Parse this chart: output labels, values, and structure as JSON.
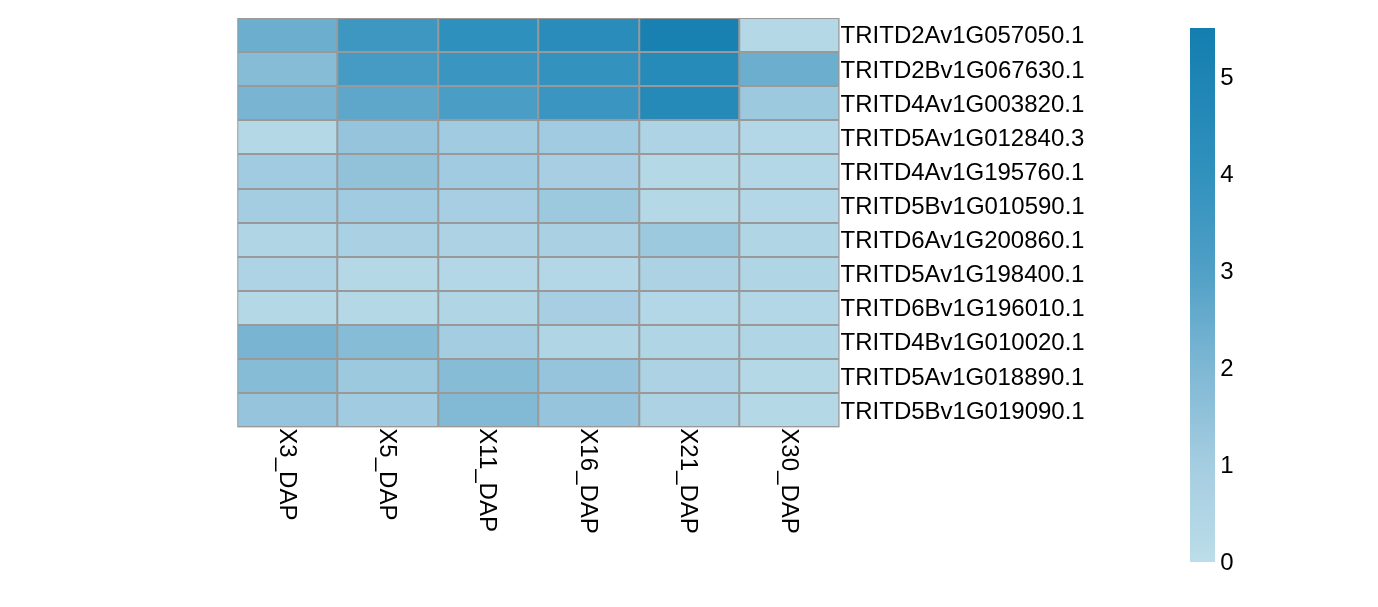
{
  "chart_data": {
    "type": "heatmap",
    "categories": [
      "X3_DAP",
      "X5_DAP",
      "X11_DAP",
      "X16_DAP",
      "X21_DAP",
      "X30_DAP"
    ],
    "y_categories": [
      "TRITD2Av1G057050.1",
      "TRITD2Bv1G067630.1",
      "TRITD4Av1G003820.1",
      "TRITD5Av1G012840.3",
      "TRITD4Av1G195760.1",
      "TRITD5Bv1G010590.1",
      "TRITD6Av1G200860.1",
      "TRITD5Av1G198400.1",
      "TRITD6Bv1G196010.1",
      "TRITD4Bv1G010020.1",
      "TRITD5Av1G018890.1",
      "TRITD5Bv1G019090.1"
    ],
    "cells": [
      [
        2.4,
        3.6,
        4.1,
        4.4,
        5.3,
        0.3
      ],
      [
        1.8,
        3.3,
        3.7,
        3.9,
        4.5,
        2.4
      ],
      [
        2.1,
        2.7,
        3.2,
        3.7,
        4.6,
        1.2
      ],
      [
        0.3,
        1.4,
        1.1,
        1.1,
        0.6,
        0.4
      ],
      [
        1.1,
        1.5,
        1.1,
        0.9,
        0.3,
        0.4
      ],
      [
        1.0,
        1.1,
        0.9,
        1.2,
        0.3,
        0.4
      ],
      [
        0.5,
        0.8,
        0.7,
        0.8,
        1.2,
        0.5
      ],
      [
        0.6,
        0.3,
        0.4,
        0.4,
        0.7,
        0.5
      ],
      [
        0.3,
        0.3,
        0.5,
        0.9,
        0.4,
        0.4
      ],
      [
        2.1,
        1.8,
        1.0,
        0.5,
        0.5,
        0.5
      ],
      [
        1.8,
        1.2,
        1.8,
        1.4,
        0.7,
        0.3
      ],
      [
        1.4,
        1.1,
        1.9,
        1.4,
        0.7,
        0.3
      ]
    ],
    "clim": [
      0,
      5.5
    ],
    "cticks": [
      0,
      1,
      2,
      3,
      4,
      5
    ]
  }
}
